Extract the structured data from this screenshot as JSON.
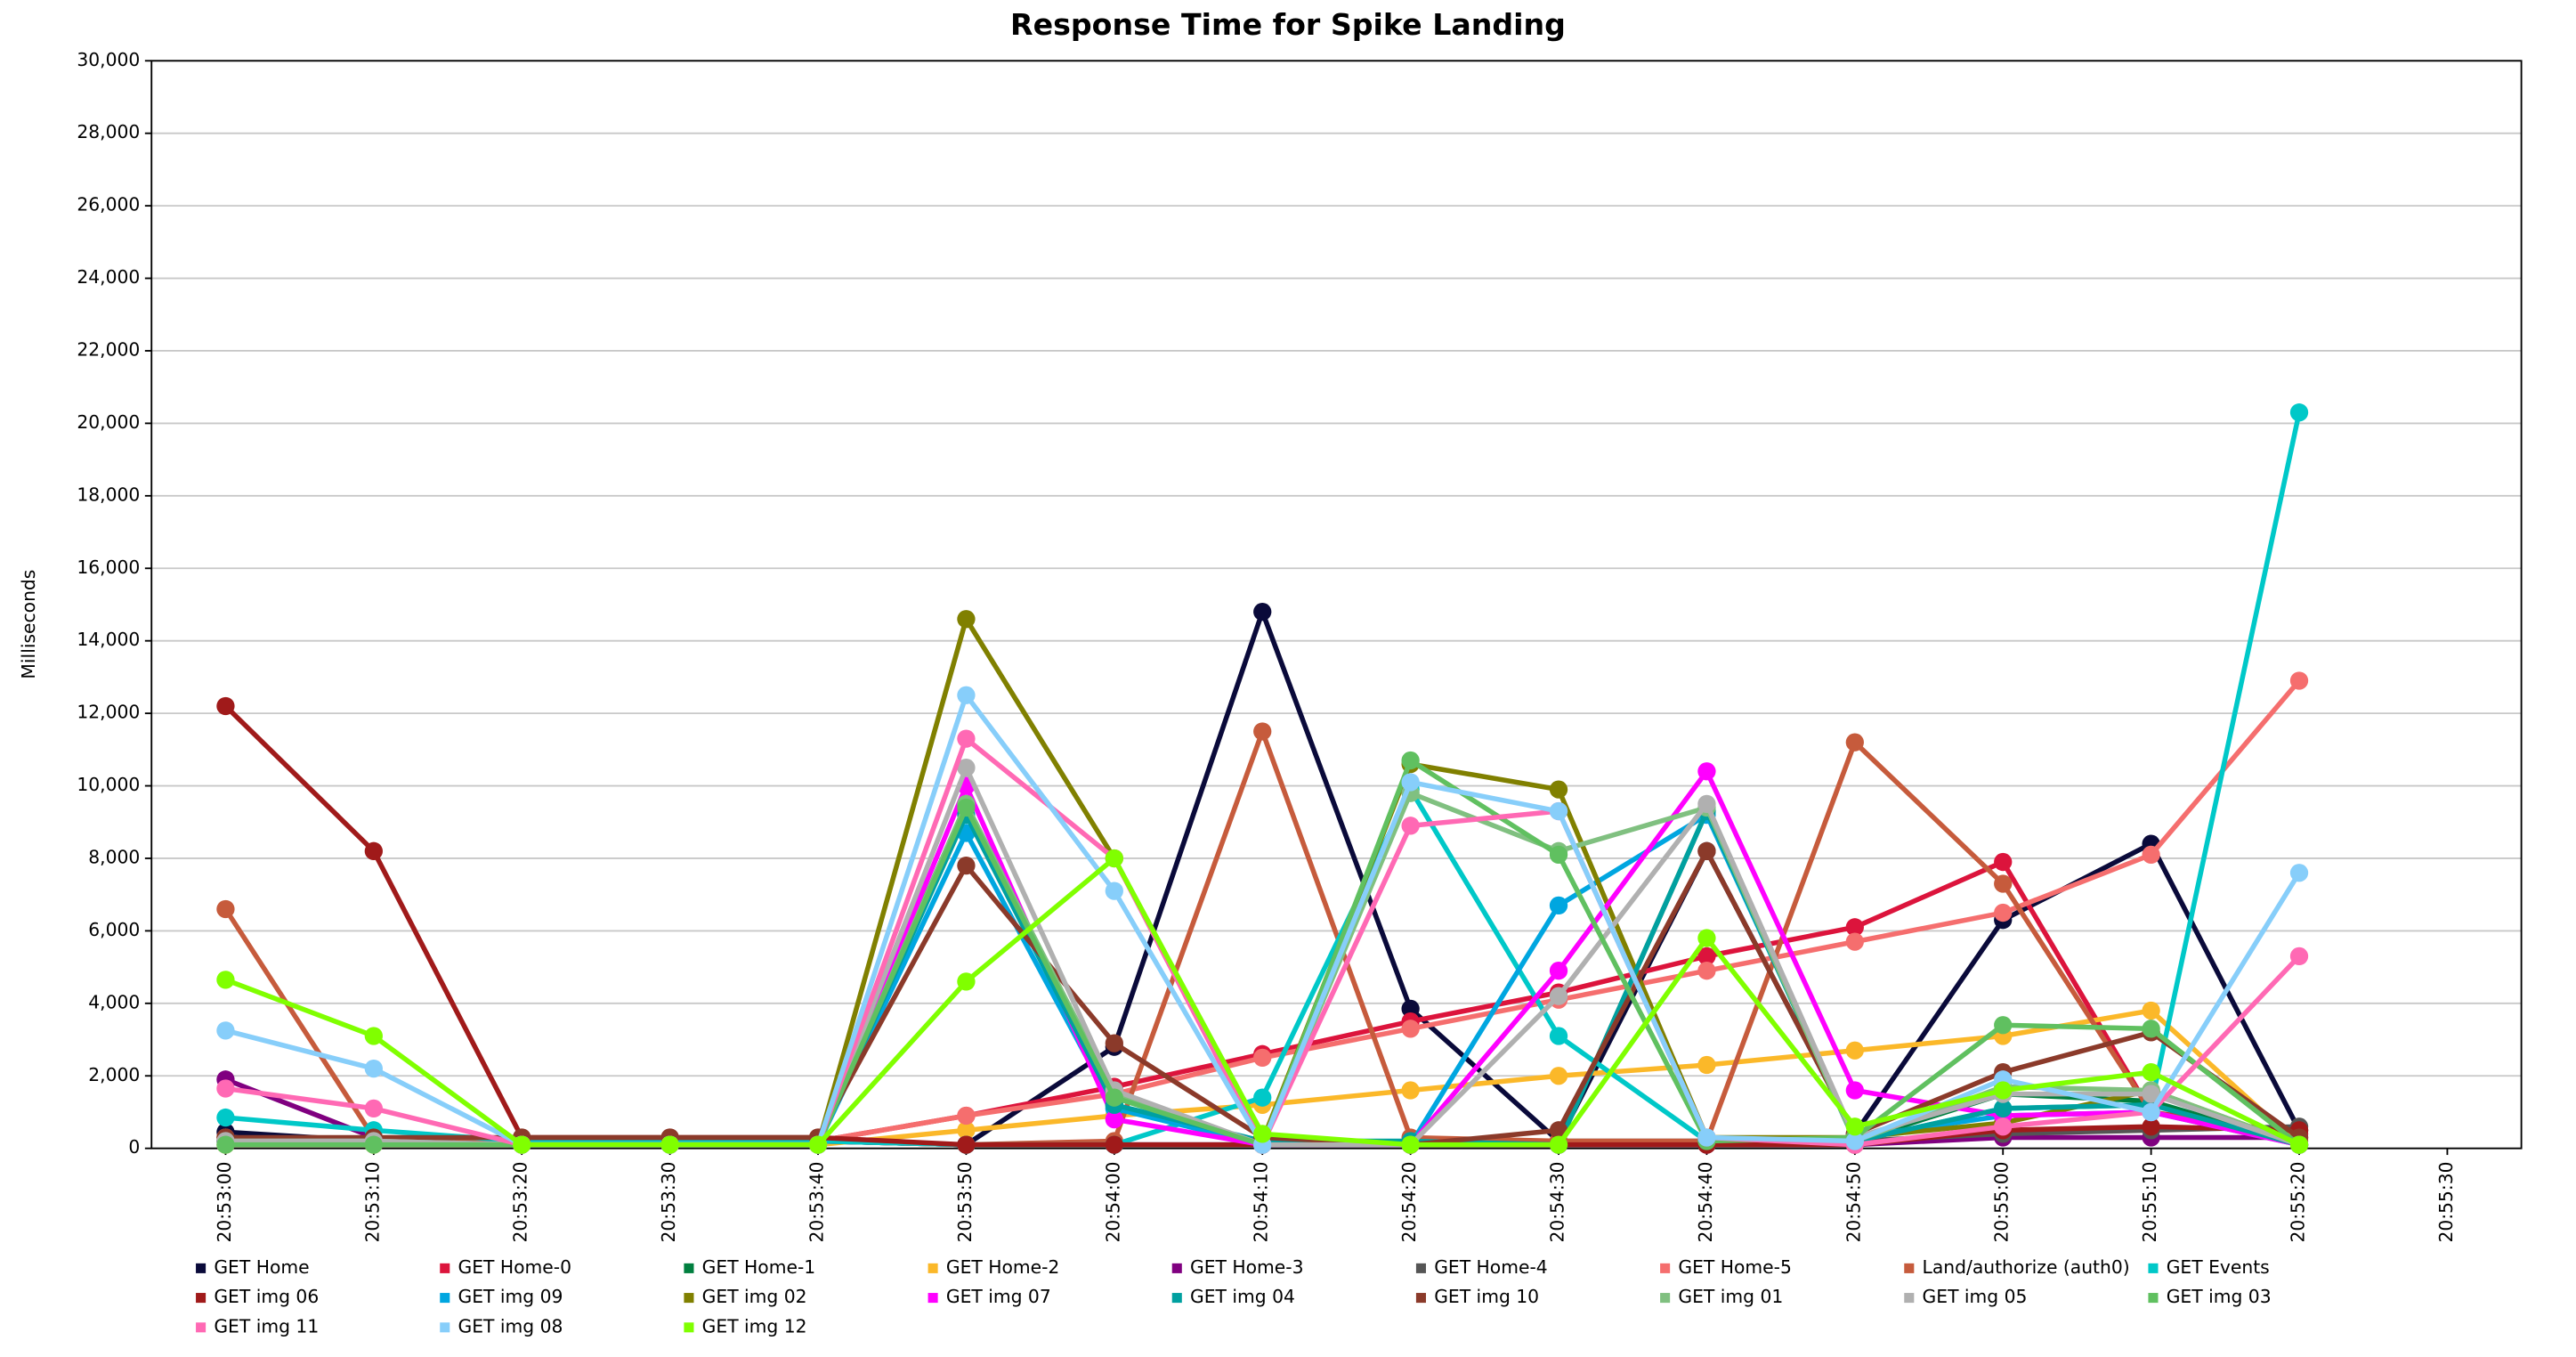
{
  "chart_data": {
    "type": "line",
    "title": "Response Time for Spike Landing",
    "y_label": "Milliseconds",
    "categories": [
      "20:53:00",
      "20:53:10",
      "20:53:20",
      "20:53:30",
      "20:53:40",
      "20:53:50",
      "20:54:00",
      "20:54:10",
      "20:54:20",
      "20:54:30",
      "20:54:40",
      "20:54:50",
      "20:55:00",
      "20:55:10",
      "20:55:20",
      "20:55:30"
    ],
    "ylim": [
      0,
      30000
    ],
    "yticks": [
      0,
      {
        "value": 2000,
        "label": "2,000"
      },
      {
        "value": 4000,
        "label": "4,000"
      },
      {
        "value": 6000,
        "label": "6,000"
      },
      {
        "value": 8000,
        "label": "8,000"
      },
      {
        "value": 10000,
        "label": "10,000"
      },
      {
        "value": 12000,
        "label": "12,000"
      },
      {
        "value": 14000,
        "label": "14,000"
      },
      {
        "value": 16000,
        "label": "16,000"
      },
      {
        "value": 18000,
        "label": "18,000"
      },
      {
        "value": 20000,
        "label": "20,000"
      },
      {
        "value": 22000,
        "label": "22,000"
      },
      {
        "value": 24000,
        "label": "24,000"
      },
      {
        "value": 26000,
        "label": "26,000"
      },
      {
        "value": 28000,
        "label": "28,000"
      },
      {
        "value": 30000,
        "label": "30,000"
      }
    ],
    "grid": true,
    "legend": "bottom",
    "series": [
      {
        "name": "GET Home",
        "color": "#0a0a3a",
        "values": [
          450,
          200,
          200,
          200,
          200,
          100,
          2800,
          14800,
          3850,
          200,
          8200,
          400,
          6300,
          8400,
          500,
          null
        ]
      },
      {
        "name": "GET Home-0",
        "color": "#dc143c",
        "values": [
          300,
          200,
          200,
          200,
          200,
          900,
          1700,
          2600,
          3500,
          4300,
          5300,
          6100,
          7900,
          1000,
          400,
          null
        ]
      },
      {
        "name": "GET Home-1",
        "color": "#007f3f",
        "values": [
          200,
          150,
          150,
          150,
          150,
          9500,
          1200,
          100,
          100,
          100,
          9300,
          200,
          1500,
          1300,
          100,
          null
        ]
      },
      {
        "name": "GET Home-2",
        "color": "#fbb829",
        "values": [
          100,
          100,
          100,
          100,
          100,
          500,
          900,
          1200,
          1600,
          2000,
          2300,
          2700,
          3100,
          3800,
          100,
          null
        ]
      },
      {
        "name": "GET Home-3",
        "color": "#800080",
        "values": [
          1900,
          300,
          200,
          200,
          200,
          100,
          100,
          100,
          100,
          100,
          100,
          100,
          300,
          300,
          300,
          null
        ]
      },
      {
        "name": "GET Home-4",
        "color": "#555555",
        "values": [
          200,
          200,
          200,
          200,
          200,
          100,
          100,
          100,
          200,
          200,
          200,
          200,
          400,
          500,
          600,
          null
        ]
      },
      {
        "name": "GET Home-5",
        "color": "#f56e6e",
        "values": [
          300,
          200,
          200,
          200,
          200,
          900,
          1500,
          2500,
          3300,
          4100,
          4900,
          5700,
          6500,
          8100,
          12900,
          null
        ]
      },
      {
        "name": "Land/authorize (auth0)",
        "color": "#c65b3c",
        "values": [
          6600,
          300,
          200,
          200,
          200,
          100,
          200,
          11500,
          300,
          200,
          200,
          11200,
          7300,
          1000,
          200,
          null
        ]
      },
      {
        "name": "GET Events",
        "color": "#00c8c8",
        "values": [
          850,
          500,
          200,
          200,
          200,
          100,
          100,
          1400,
          9900,
          3100,
          200,
          200,
          1100,
          1200,
          20300,
          null
        ]
      },
      {
        "name": "GET img 06",
        "color": "#a01a1a",
        "values": [
          12200,
          8200,
          300,
          300,
          300,
          100,
          100,
          100,
          100,
          100,
          100,
          100,
          500,
          600,
          500,
          null
        ]
      },
      {
        "name": "GET img 09",
        "color": "#00a6e0",
        "values": [
          200,
          200,
          100,
          100,
          100,
          8700,
          1100,
          100,
          100,
          6700,
          9200,
          300,
          900,
          1000,
          100,
          null
        ]
      },
      {
        "name": "GET img 02",
        "color": "#808000",
        "values": [
          200,
          200,
          100,
          100,
          100,
          14600,
          8000,
          200,
          10600,
          9900,
          300,
          300,
          700,
          1600,
          100,
          null
        ]
      },
      {
        "name": "GET img 07",
        "color": "#ff00ff",
        "values": [
          200,
          200,
          100,
          100,
          100,
          10000,
          800,
          100,
          100,
          4900,
          10400,
          1600,
          900,
          1000,
          100,
          null
        ]
      },
      {
        "name": "GET img 04",
        "color": "#00a0a0",
        "values": [
          200,
          200,
          100,
          100,
          100,
          9200,
          1200,
          200,
          200,
          100,
          9300,
          200,
          1100,
          1200,
          100,
          null
        ]
      },
      {
        "name": "GET img 10",
        "color": "#8b3a2a",
        "values": [
          300,
          300,
          300,
          300,
          300,
          7800,
          2900,
          300,
          100,
          500,
          8200,
          400,
          2100,
          3200,
          300,
          null
        ]
      },
      {
        "name": "GET img 01",
        "color": "#80c080",
        "values": [
          200,
          200,
          100,
          100,
          100,
          9500,
          1500,
          100,
          9800,
          8200,
          9400,
          200,
          1700,
          1600,
          100,
          null
        ]
      },
      {
        "name": "GET img 05",
        "color": "#b0b0b0",
        "values": [
          200,
          200,
          100,
          100,
          100,
          10500,
          1600,
          100,
          100,
          4200,
          9500,
          300,
          1500,
          1500,
          100,
          null
        ]
      },
      {
        "name": "GET img 03",
        "color": "#60c060",
        "values": [
          100,
          100,
          100,
          100,
          100,
          9400,
          1400,
          100,
          10700,
          8100,
          200,
          300,
          3400,
          3300,
          100,
          null
        ]
      },
      {
        "name": "GET img 11",
        "color": "#ff69b4",
        "values": [
          1650,
          1100,
          100,
          100,
          100,
          11300,
          8000,
          100,
          8900,
          9300,
          300,
          100,
          600,
          1000,
          5300,
          null
        ]
      },
      {
        "name": "GET img 08",
        "color": "#87cefa",
        "values": [
          3250,
          2200,
          100,
          100,
          100,
          12500,
          7100,
          100,
          10100,
          9300,
          300,
          200,
          1900,
          1000,
          7600,
          null
        ]
      },
      {
        "name": "GET img 12",
        "color": "#80ff00",
        "values": [
          4650,
          3100,
          100,
          100,
          100,
          4600,
          8000,
          400,
          100,
          100,
          5800,
          600,
          1600,
          2100,
          100,
          null
        ]
      }
    ]
  }
}
